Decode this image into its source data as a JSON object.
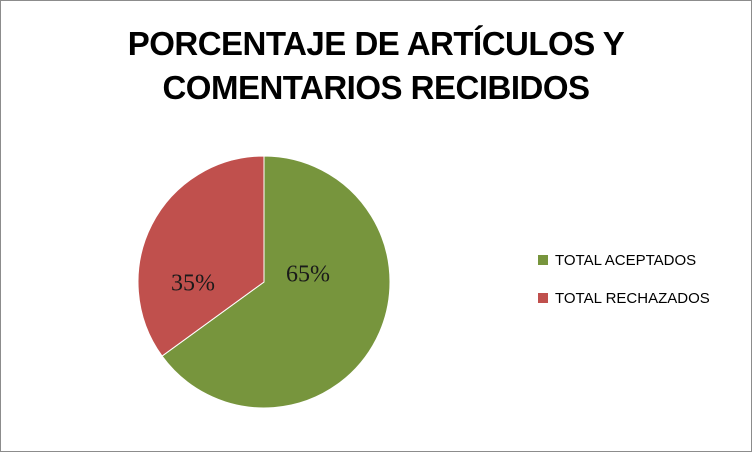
{
  "chart_data": {
    "type": "pie",
    "title_lines": [
      "PORCENTAJE DE ARTÍCULOS Y",
      "COMENTARIOS RECIBIDOS"
    ],
    "categories": [
      "TOTAL ACEPTADOS",
      "TOTAL RECHAZADOS"
    ],
    "values": [
      65,
      35
    ],
    "data_labels": [
      "65%",
      "35%"
    ],
    "colors": [
      "#77953d",
      "#c0504d"
    ],
    "legend_position": "right"
  }
}
